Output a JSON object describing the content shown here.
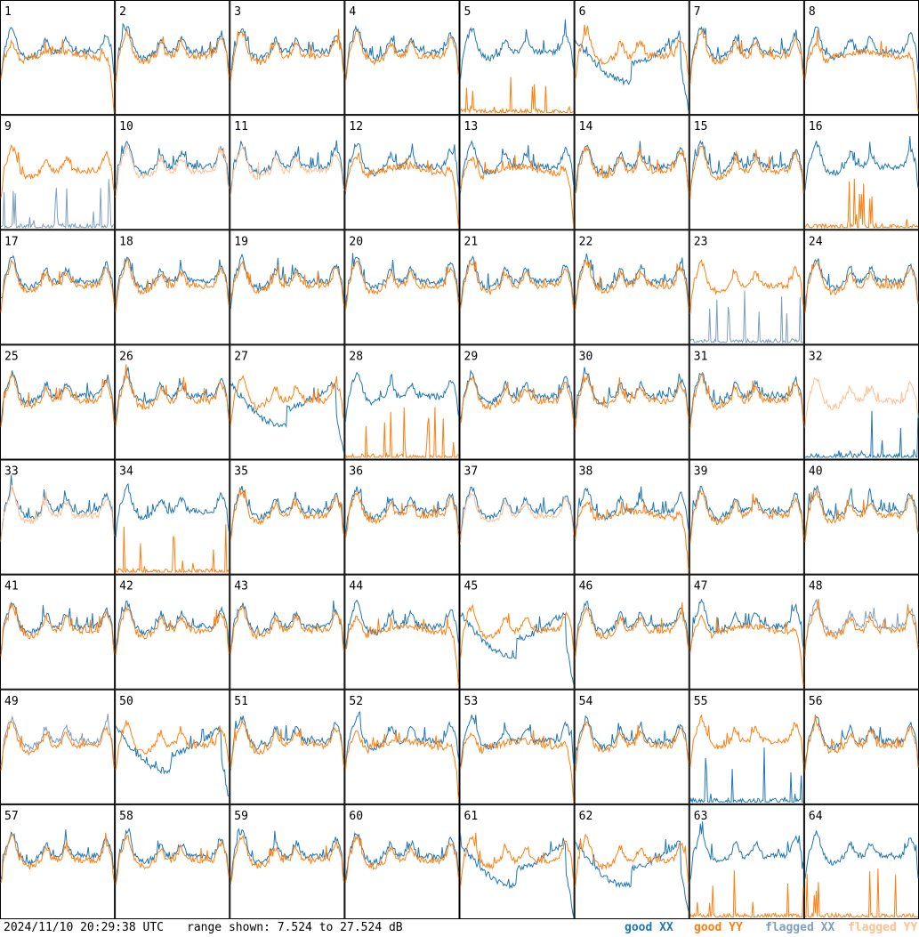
{
  "chart_data": {
    "type": "line",
    "title": "",
    "panels": 64,
    "columns": 8,
    "rows": 8,
    "panel_labels": [
      "1",
      "2",
      "3",
      "4",
      "5",
      "6",
      "7",
      "8",
      "9",
      "10",
      "11",
      "12",
      "13",
      "14",
      "15",
      "16",
      "17",
      "18",
      "19",
      "20",
      "21",
      "22",
      "23",
      "24",
      "25",
      "26",
      "27",
      "28",
      "29",
      "30",
      "31",
      "32",
      "33",
      "34",
      "35",
      "36",
      "37",
      "38",
      "39",
      "40",
      "41",
      "42",
      "43",
      "44",
      "45",
      "46",
      "47",
      "48",
      "49",
      "50",
      "51",
      "52",
      "53",
      "54",
      "55",
      "56",
      "57",
      "58",
      "59",
      "60",
      "61",
      "62",
      "63",
      "64"
    ],
    "y_range_db": [
      7.524,
      27.524
    ],
    "series_legend": [
      {
        "name": "good XX",
        "color": "#1f77b4"
      },
      {
        "name": "good YY",
        "color": "#ff7f0e"
      },
      {
        "name": "flagged XX",
        "color": "#7f9fbf"
      },
      {
        "name": "flagged YY",
        "color": "#ffbf8f"
      }
    ],
    "panel_styles": {
      "normal": [
        2,
        3,
        4,
        7,
        14,
        15,
        17,
        18,
        19,
        20,
        21,
        22,
        24,
        25,
        26,
        29,
        30,
        31,
        35,
        36,
        39,
        40,
        41,
        42,
        43,
        46,
        51,
        54,
        56,
        57,
        58,
        59,
        60
      ],
      "yy_rolloff": [
        1,
        8,
        12,
        13,
        38,
        44,
        47,
        52,
        53
      ],
      "xx_dip": [
        6,
        27,
        45,
        50,
        61,
        62
      ],
      "xx_dead": [
        5,
        16,
        64
      ],
      "yy_dead": [
        28,
        34,
        63
      ],
      "xx_flagged_dead": [
        9,
        23
      ],
      "yy_flagged": [
        10,
        11,
        33,
        37
      ],
      "xx_flagged": [
        48,
        49
      ],
      "both_dead": [
        55
      ],
      "yy_flagged_xx_dead": [
        32
      ]
    }
  },
  "footer": {
    "timestamp": "2024/11/10 20:29:38 UTC",
    "range_text": "range shown: 7.524 to 27.524 dB"
  },
  "legend": {
    "good_xx": "good XX",
    "good_yy": "good YY",
    "flagged_xx": "flagged XX",
    "flagged_yy": "flagged YY"
  },
  "colors": {
    "good_xx": "#1f77b4",
    "good_yy": "#ff7f0e",
    "flagged_xx": "#7f9fbf",
    "flagged_yy": "#ffbf8f"
  }
}
